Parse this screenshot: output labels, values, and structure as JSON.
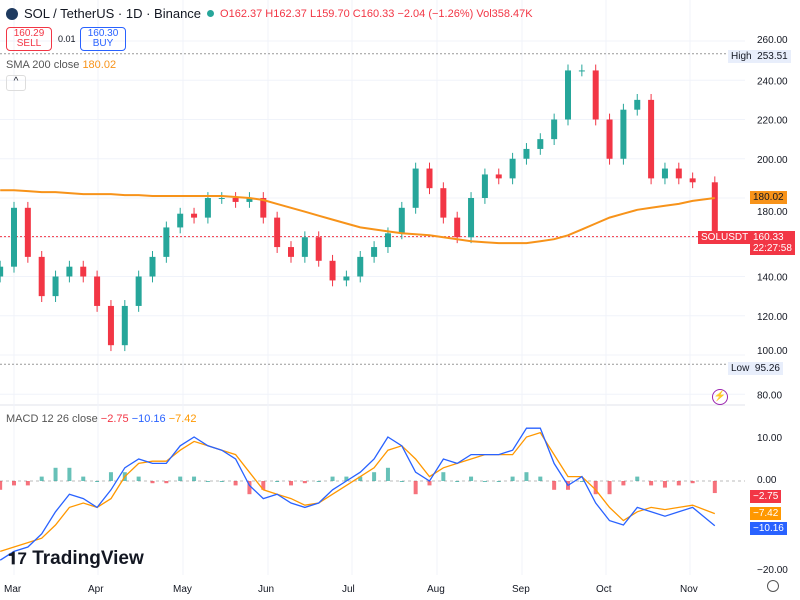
{
  "header": {
    "symbol": "SOL / TetherUS · 1D · Binance",
    "open": "O162.37",
    "high": "H162.37",
    "low": "L159.70",
    "close": "C160.33",
    "change": "−2.04 (−1.26%)",
    "volume": "Vol358.47K"
  },
  "trade": {
    "sell_price": "160.29",
    "sell_label": "SELL",
    "spread": "0.01",
    "buy_price": "160.30",
    "buy_label": "BUY"
  },
  "sma": {
    "label": "SMA 200 close",
    "value": "180.02",
    "color": "#f7931a"
  },
  "macd": {
    "label": "MACD 12 26 close",
    "hist": "−2.75",
    "macd": "−10.16",
    "signal": "−7.42"
  },
  "markers": {
    "high_label": "High",
    "high_value": "253.51",
    "low_label": "Low",
    "low_value": "95.26",
    "symbol_tag": "SOLUSDT",
    "last_price": "160.33",
    "countdown": "22:27:58"
  },
  "brand": "TradingView",
  "colors": {
    "up": "#26a69a",
    "down": "#f23645",
    "macd": "#2962ff",
    "signal": "#ff9800",
    "sma": "#f7931a"
  },
  "chart_data": {
    "type": "candlestick",
    "price_ticks": [
      "260.00",
      "240.00",
      "220.00",
      "200.00",
      "180.00",
      "140.00",
      "120.00",
      "100.00",
      "80.00"
    ],
    "price_range": [
      80,
      260
    ],
    "macd_ticks": [
      "10.00",
      "0.00",
      "−20.00"
    ],
    "macd_range": [
      -22,
      14
    ],
    "x_ticks": [
      "Mar",
      "Apr",
      "May",
      "Jun",
      "Jul",
      "Aug",
      "Sep",
      "Oct",
      "Nov"
    ],
    "dates": [
      "2024-02-25",
      "2024-03-01",
      "2024-03-06",
      "2024-03-11",
      "2024-03-16",
      "2024-03-21",
      "2024-03-26",
      "2024-03-31",
      "2024-04-05",
      "2024-04-10",
      "2024-04-15",
      "2024-04-20",
      "2024-04-25",
      "2024-04-30",
      "2024-05-05",
      "2024-05-10",
      "2024-05-15",
      "2024-05-20",
      "2024-05-25",
      "2024-05-30",
      "2024-06-04",
      "2024-06-09",
      "2024-06-14",
      "2024-06-19",
      "2024-06-24",
      "2024-06-29",
      "2024-07-04",
      "2024-07-09",
      "2024-07-14",
      "2024-07-19",
      "2024-07-24",
      "2024-07-29",
      "2024-08-03",
      "2024-08-08",
      "2024-08-13",
      "2024-08-18",
      "2024-08-23",
      "2024-08-28",
      "2024-09-02",
      "2024-09-07",
      "2024-09-12",
      "2024-09-17",
      "2024-09-22",
      "2024-09-27",
      "2024-10-02",
      "2024-10-07",
      "2024-10-12",
      "2024-10-17",
      "2024-10-22",
      "2024-10-27",
      "2024-11-01",
      "2024-11-09"
    ],
    "close": [
      145,
      175,
      150,
      130,
      140,
      145,
      140,
      125,
      105,
      125,
      140,
      150,
      165,
      172,
      170,
      180,
      180,
      178,
      180,
      170,
      155,
      150,
      160,
      148,
      138,
      140,
      150,
      155,
      162,
      175,
      195,
      185,
      170,
      160,
      180,
      192,
      190,
      200,
      205,
      210,
      220,
      245,
      245,
      220,
      200,
      225,
      230,
      190,
      195,
      190,
      188,
      160.33
    ],
    "sma200": [
      184,
      184,
      183.5,
      183,
      183,
      182.5,
      182,
      182,
      182,
      181.5,
      181.5,
      181,
      181,
      181,
      181,
      181,
      181,
      180.5,
      180,
      179,
      177,
      175,
      173,
      171,
      169,
      167,
      165,
      164,
      163,
      162,
      161.5,
      161,
      160,
      159,
      158,
      157.5,
      157,
      157,
      157,
      158,
      159,
      161,
      164,
      167,
      170,
      172,
      174,
      175,
      176,
      177,
      178.5,
      180.02
    ],
    "macd": [
      -18,
      -16,
      -15,
      -12,
      -7,
      -3,
      -4,
      -6,
      -2,
      3,
      5,
      4,
      4,
      8,
      10,
      8,
      7,
      5,
      -1,
      -4,
      -3,
      -5,
      -6,
      -5,
      -2,
      0,
      2,
      5,
      10,
      8,
      2,
      0,
      5,
      4,
      6,
      6,
      6,
      7,
      12,
      12,
      4,
      -1,
      1,
      -5,
      -9,
      -10,
      -6,
      -7,
      -8,
      -7,
      -6,
      -10.16
    ],
    "signal": [
      -16,
      -15,
      -14,
      -13,
      -10,
      -6,
      -5,
      -6,
      -4,
      1,
      4,
      4.5,
      4.5,
      7,
      9,
      8,
      7,
      6,
      2,
      -2,
      -3,
      -4,
      -5.5,
      -5,
      -3,
      -1,
      1,
      3,
      7,
      8,
      5,
      1,
      3,
      4,
      5,
      6,
      6,
      6,
      10,
      11,
      6,
      1,
      1,
      -2,
      -6,
      -9,
      -7,
      -6,
      -6.5,
      -6,
      -5.5,
      -7.42
    ]
  }
}
